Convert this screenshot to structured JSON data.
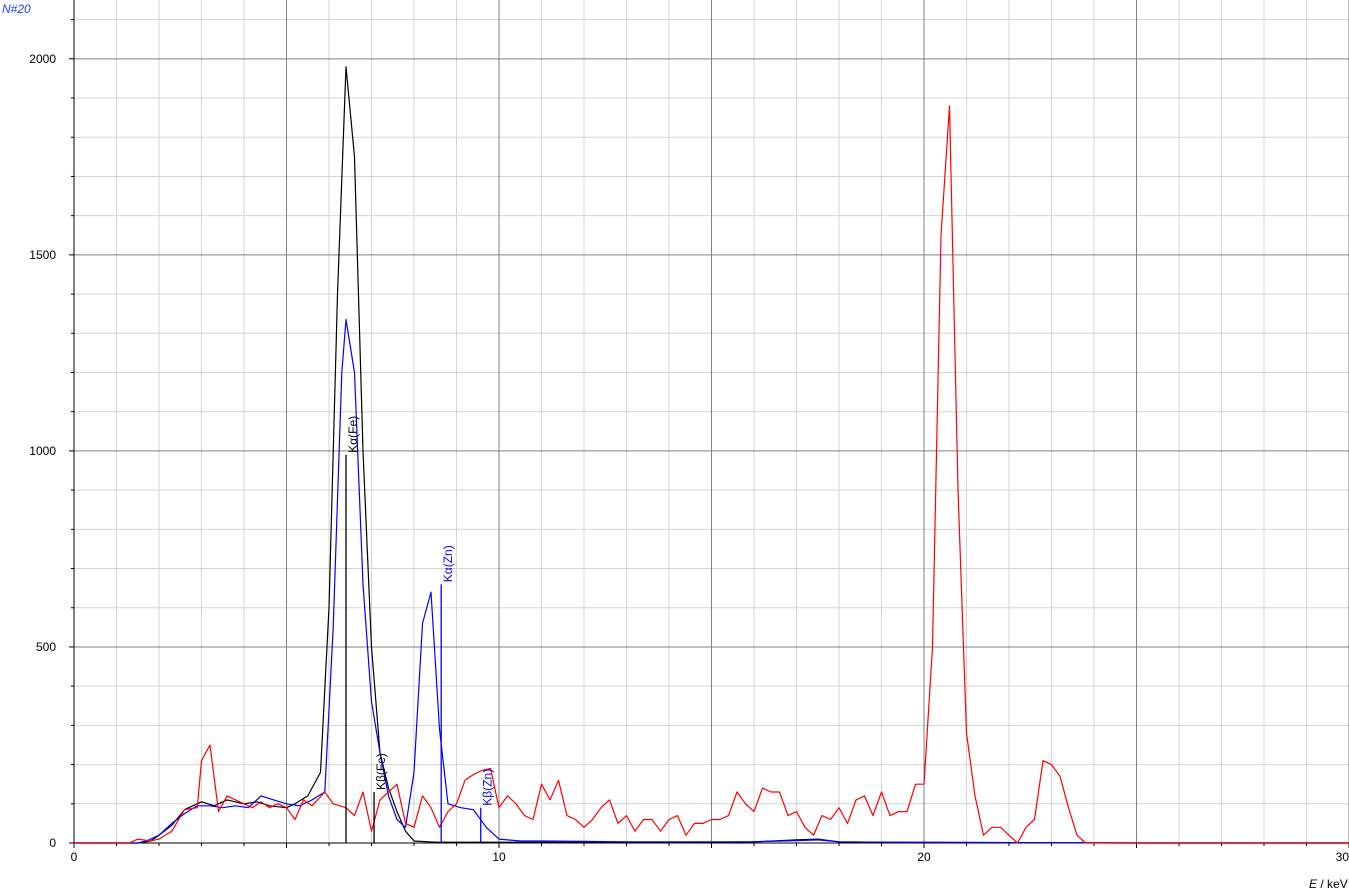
{
  "chart_data": {
    "type": "line",
    "title": "",
    "ylabel": "N#20",
    "xlabel_var": "E",
    "xlabel_unit": " / keV",
    "xlim": [
      0,
      30
    ],
    "ylim": [
      0,
      2150
    ],
    "xticks": [
      0,
      10,
      20,
      30
    ],
    "yticks": [
      0,
      500,
      1000,
      1500,
      2000
    ],
    "grid": true,
    "colors": {
      "black": "#000000",
      "blue": "#0000ff",
      "red": "#ff0000"
    },
    "series": [
      {
        "color": "#000000",
        "points": [
          [
            0,
            0
          ],
          [
            1.5,
            0
          ],
          [
            1.8,
            5
          ],
          [
            2.0,
            20
          ],
          [
            2.3,
            45
          ],
          [
            2.6,
            85
          ],
          [
            3.0,
            105
          ],
          [
            3.3,
            95
          ],
          [
            3.6,
            110
          ],
          [
            4.0,
            100
          ],
          [
            4.3,
            105
          ],
          [
            4.6,
            95
          ],
          [
            5.0,
            90
          ],
          [
            5.2,
            100
          ],
          [
            5.5,
            120
          ],
          [
            5.8,
            180
          ],
          [
            6.0,
            600
          ],
          [
            6.2,
            1400
          ],
          [
            6.4,
            1980
          ],
          [
            6.6,
            1750
          ],
          [
            6.8,
            1000
          ],
          [
            7.0,
            500
          ],
          [
            7.2,
            230
          ],
          [
            7.4,
            140
          ],
          [
            7.6,
            80
          ],
          [
            7.8,
            30
          ],
          [
            8.0,
            5
          ],
          [
            8.5,
            2
          ],
          [
            10,
            2
          ],
          [
            15,
            2
          ],
          [
            16,
            3
          ],
          [
            17,
            8
          ],
          [
            17.5,
            10
          ],
          [
            18,
            3
          ],
          [
            19,
            2
          ],
          [
            25,
            0
          ],
          [
            30,
            0
          ]
        ]
      },
      {
        "color": "#0000ff",
        "points": [
          [
            0,
            0
          ],
          [
            1.5,
            0
          ],
          [
            1.7,
            5
          ],
          [
            2.0,
            20
          ],
          [
            2.3,
            50
          ],
          [
            2.6,
            75
          ],
          [
            2.9,
            95
          ],
          [
            3.2,
            95
          ],
          [
            3.5,
            90
          ],
          [
            3.8,
            95
          ],
          [
            4.1,
            90
          ],
          [
            4.4,
            120
          ],
          [
            4.7,
            110
          ],
          [
            5.0,
            100
          ],
          [
            5.3,
            95
          ],
          [
            5.6,
            110
          ],
          [
            5.9,
            130
          ],
          [
            6.1,
            550
          ],
          [
            6.3,
            1200
          ],
          [
            6.4,
            1335
          ],
          [
            6.6,
            1200
          ],
          [
            6.8,
            660
          ],
          [
            7.0,
            360
          ],
          [
            7.2,
            230
          ],
          [
            7.4,
            120
          ],
          [
            7.6,
            60
          ],
          [
            7.8,
            40
          ],
          [
            8.0,
            180
          ],
          [
            8.2,
            560
          ],
          [
            8.4,
            640
          ],
          [
            8.6,
            290
          ],
          [
            8.8,
            100
          ],
          [
            9.1,
            90
          ],
          [
            9.4,
            85
          ],
          [
            9.7,
            40
          ],
          [
            10.0,
            10
          ],
          [
            10.5,
            5
          ],
          [
            11,
            5
          ],
          [
            12,
            4
          ],
          [
            13,
            3
          ],
          [
            16,
            3
          ],
          [
            17,
            6
          ],
          [
            17.5,
            8
          ],
          [
            18,
            3
          ],
          [
            19,
            2
          ],
          [
            25,
            0
          ],
          [
            30,
            0
          ]
        ]
      },
      {
        "color": "#ff0000",
        "points": [
          [
            0,
            0
          ],
          [
            1.3,
            0
          ],
          [
            1.5,
            10
          ],
          [
            1.8,
            5
          ],
          [
            2.0,
            10
          ],
          [
            2.3,
            30
          ],
          [
            2.6,
            85
          ],
          [
            2.9,
            90
          ],
          [
            3.0,
            210
          ],
          [
            3.2,
            250
          ],
          [
            3.4,
            80
          ],
          [
            3.6,
            120
          ],
          [
            3.8,
            110
          ],
          [
            4.0,
            100
          ],
          [
            4.2,
            90
          ],
          [
            4.4,
            105
          ],
          [
            4.6,
            90
          ],
          [
            4.8,
            100
          ],
          [
            5.0,
            90
          ],
          [
            5.2,
            60
          ],
          [
            5.4,
            110
          ],
          [
            5.6,
            95
          ],
          [
            5.9,
            130
          ],
          [
            6.1,
            100
          ],
          [
            6.4,
            90
          ],
          [
            6.6,
            70
          ],
          [
            6.8,
            130
          ],
          [
            7.0,
            30
          ],
          [
            7.2,
            110
          ],
          [
            7.4,
            130
          ],
          [
            7.6,
            150
          ],
          [
            7.8,
            50
          ],
          [
            8.0,
            40
          ],
          [
            8.2,
            120
          ],
          [
            8.4,
            90
          ],
          [
            8.6,
            40
          ],
          [
            8.8,
            80
          ],
          [
            9.0,
            100
          ],
          [
            9.2,
            160
          ],
          [
            9.4,
            175
          ],
          [
            9.6,
            185
          ],
          [
            9.8,
            190
          ],
          [
            10.0,
            90
          ],
          [
            10.2,
            120
          ],
          [
            10.4,
            100
          ],
          [
            10.6,
            70
          ],
          [
            10.8,
            60
          ],
          [
            11.0,
            150
          ],
          [
            11.2,
            110
          ],
          [
            11.4,
            160
          ],
          [
            11.6,
            70
          ],
          [
            11.8,
            60
          ],
          [
            12.0,
            40
          ],
          [
            12.2,
            60
          ],
          [
            12.4,
            90
          ],
          [
            12.6,
            110
          ],
          [
            12.8,
            50
          ],
          [
            13.0,
            70
          ],
          [
            13.2,
            30
          ],
          [
            13.4,
            60
          ],
          [
            13.6,
            60
          ],
          [
            13.8,
            30
          ],
          [
            14.0,
            60
          ],
          [
            14.2,
            70
          ],
          [
            14.4,
            20
          ],
          [
            14.6,
            50
          ],
          [
            14.8,
            50
          ],
          [
            15.0,
            60
          ],
          [
            15.2,
            60
          ],
          [
            15.4,
            70
          ],
          [
            15.6,
            130
          ],
          [
            15.8,
            100
          ],
          [
            16.0,
            80
          ],
          [
            16.2,
            140
          ],
          [
            16.4,
            130
          ],
          [
            16.6,
            130
          ],
          [
            16.8,
            70
          ],
          [
            17.0,
            80
          ],
          [
            17.2,
            40
          ],
          [
            17.4,
            20
          ],
          [
            17.6,
            70
          ],
          [
            17.8,
            60
          ],
          [
            18.0,
            90
          ],
          [
            18.2,
            50
          ],
          [
            18.4,
            110
          ],
          [
            18.6,
            120
          ],
          [
            18.8,
            70
          ],
          [
            19.0,
            130
          ],
          [
            19.2,
            70
          ],
          [
            19.4,
            80
          ],
          [
            19.6,
            80
          ],
          [
            19.8,
            150
          ],
          [
            20.0,
            150
          ],
          [
            20.2,
            500
          ],
          [
            20.4,
            1550
          ],
          [
            20.6,
            1880
          ],
          [
            20.8,
            900
          ],
          [
            21.0,
            280
          ],
          [
            21.2,
            120
          ],
          [
            21.4,
            20
          ],
          [
            21.6,
            40
          ],
          [
            21.8,
            40
          ],
          [
            22.0,
            20
          ],
          [
            22.2,
            0
          ],
          [
            22.4,
            40
          ],
          [
            22.6,
            60
          ],
          [
            22.8,
            210
          ],
          [
            23.0,
            200
          ],
          [
            23.2,
            170
          ],
          [
            23.4,
            90
          ],
          [
            23.6,
            20
          ],
          [
            23.8,
            0
          ],
          [
            30,
            0
          ]
        ]
      }
    ],
    "annotations": [
      {
        "label": "Kα(Fe)",
        "x": 6.4,
        "y": 990,
        "color": "#000000"
      },
      {
        "label": "Kβ(Fe)",
        "x": 7.06,
        "y": 130,
        "color": "#000000"
      },
      {
        "label": "Kα(Zn)",
        "x": 8.64,
        "y": 660,
        "color": "#0000ff"
      },
      {
        "label": "Kβ(Zn)",
        "x": 9.57,
        "y": 90,
        "color": "#0000ff"
      }
    ]
  }
}
